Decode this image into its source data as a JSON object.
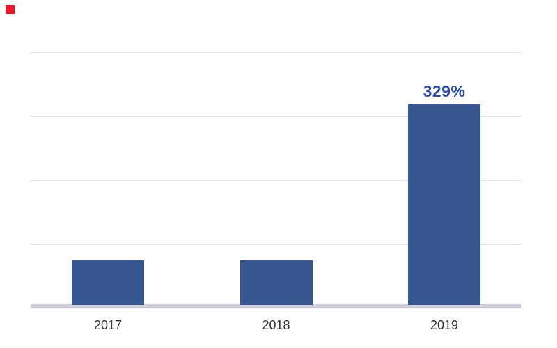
{
  "page": {
    "background_color": "#FFFFFF"
  },
  "decoration": {
    "red_square_marker": {
      "color": "#E9182C"
    }
  },
  "chart_data": {
    "type": "bar",
    "title": "",
    "xlabel": "",
    "ylabel": "",
    "categories": [
      "2017",
      "2018",
      "2019"
    ],
    "values": [
      73,
      73,
      329
    ],
    "value_labels": [
      "",
      "",
      "329%"
    ],
    "ylim": [
      0,
      416
    ],
    "grid": true,
    "gridline_count": 4,
    "legend_position": "none",
    "colors": {
      "bar_fill": "#35568F",
      "value_label_text": "#2A4AA4",
      "category_label_text": "#333333",
      "gridline": "#E4E4EA",
      "baseline": "#CFCFD9"
    }
  }
}
